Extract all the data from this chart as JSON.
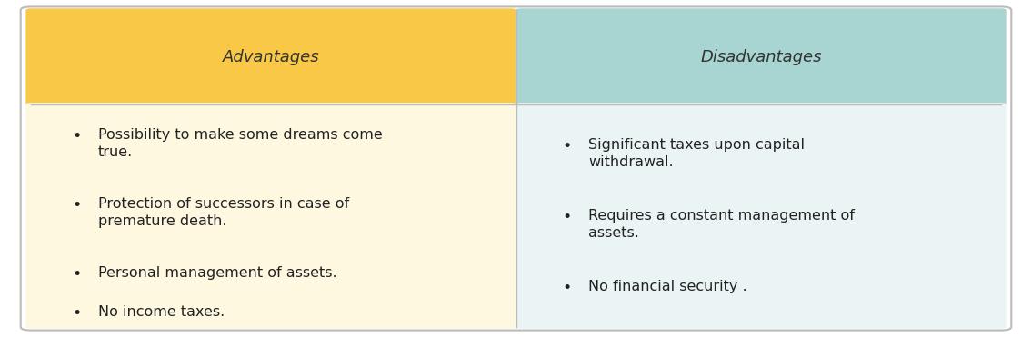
{
  "advantages_header": "Advantages",
  "disadvantages_header": "Disadvantages",
  "advantages_color": "#F9C846",
  "disadvantages_color": "#A8D5D1",
  "advantages_bg": "#FEF8E1",
  "disadvantages_bg": "#EAF4F4",
  "outer_bg": "#FFFFFF",
  "header_text_color": "#333333",
  "body_text_color": "#222222",
  "advantages_items": [
    "Possibility to make some dreams come\ntrue.",
    "Protection of successors in case of\npremature death.",
    "Personal management of assets.",
    "No income taxes."
  ],
  "disadvantages_items": [
    "Significant taxes upon capital\nwithdrawal.",
    "Requires a constant management of\nassets.",
    "No financial security ."
  ],
  "header_fontsize": 13,
  "body_fontsize": 11.5,
  "fig_width": 11.35,
  "fig_height": 3.71
}
